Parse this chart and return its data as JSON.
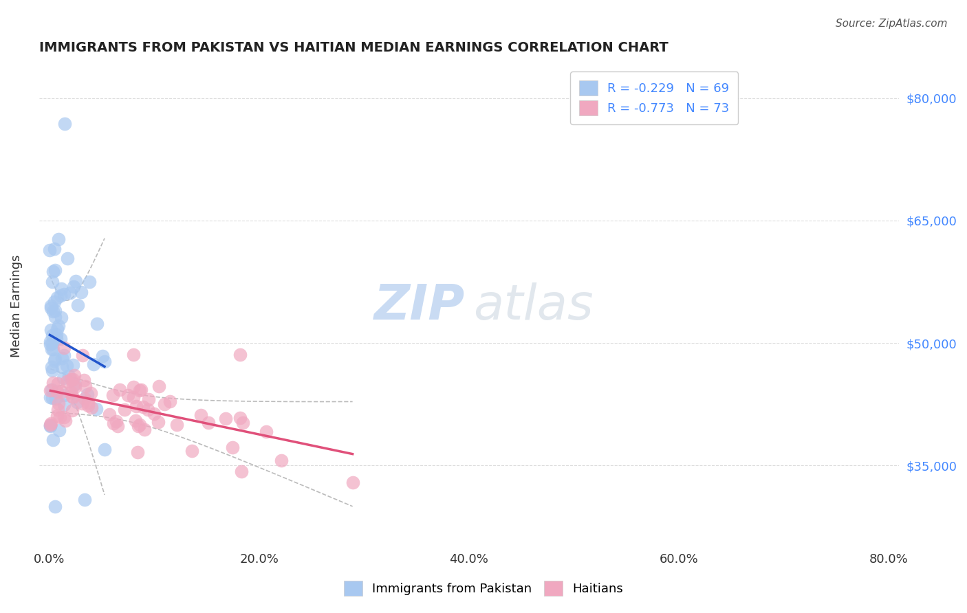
{
  "title": "IMMIGRANTS FROM PAKISTAN VS HAITIAN MEDIAN EARNINGS CORRELATION CHART",
  "source": "Source: ZipAtlas.com",
  "xlabel": "",
  "ylabel": "Median Earnings",
  "xlim": [
    0.0,
    80.0
  ],
  "ylim": [
    25000,
    84000
  ],
  "ytick_positions": [
    35000,
    50000,
    65000,
    80000
  ],
  "ytick_labels": [
    "$35,000",
    "$50,000",
    "$65,000",
    "$80,000"
  ],
  "xtick_positions": [
    0,
    20,
    40,
    60,
    80
  ],
  "xtick_labels": [
    "0.0%",
    "20.0%",
    "40.0%",
    "60.0%",
    "80.0%"
  ],
  "pakistan_R": -0.229,
  "pakistan_N": 69,
  "haitian_R": -0.773,
  "haitian_N": 73,
  "pakistan_color": "#a8c8f0",
  "haitian_color": "#f0a8c0",
  "pakistan_line_color": "#2255cc",
  "haitian_line_color": "#e0507a",
  "ci_color": "#bbbbbb",
  "legend_label_pakistan": "Immigrants from Pakistan",
  "legend_label_haitian": "Haitians"
}
